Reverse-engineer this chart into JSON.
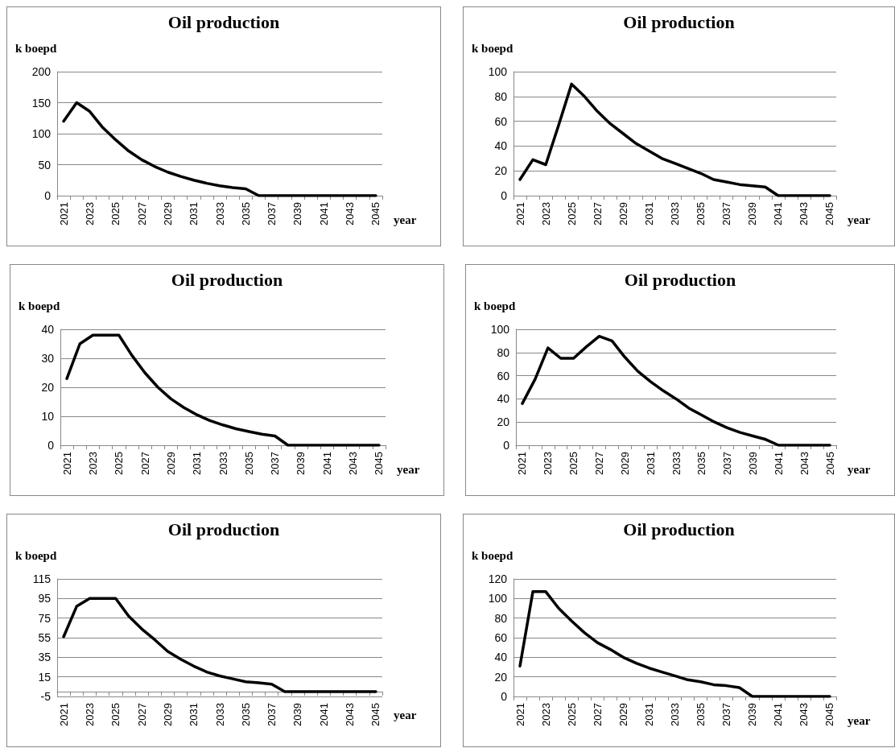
{
  "chart_data": [
    {
      "type": "line",
      "title": "Oil production",
      "ylabel": "k boepd",
      "xlabel": "year",
      "categories": [
        "2021",
        null,
        "2023",
        null,
        "2025",
        null,
        "2027",
        null,
        "2029",
        null,
        "2031",
        null,
        "2033",
        null,
        "2035",
        null,
        "2037",
        null,
        "2039",
        null,
        "2041",
        null,
        "2043",
        null,
        "2045"
      ],
      "series": [
        {
          "color": "#000000",
          "values": [
            120,
            150,
            136,
            110,
            90,
            72,
            58,
            47,
            38,
            31,
            25,
            20,
            16,
            13,
            11,
            0,
            0,
            0,
            0,
            0,
            0,
            0,
            0,
            0,
            0
          ]
        }
      ],
      "ylim": [
        0,
        200
      ],
      "yticks": [
        0,
        50,
        100,
        150,
        200
      ],
      "grid": "y",
      "marker": "none",
      "line_style": "solid"
    },
    {
      "type": "line",
      "title": "Oil production",
      "ylabel": "k boepd",
      "xlabel": "year",
      "categories": [
        "2021",
        null,
        "2023",
        null,
        "2025",
        null,
        "2027",
        null,
        "2029",
        null,
        "2031",
        null,
        "2033",
        null,
        "2035",
        null,
        "2037",
        null,
        "2039",
        null,
        "2041",
        null,
        "2043",
        null,
        "2045"
      ],
      "series": [
        {
          "color": "#000000",
          "values": [
            13,
            29,
            25,
            57,
            90,
            80,
            68,
            58,
            50,
            42,
            36,
            30,
            26,
            22,
            18,
            13,
            11,
            9,
            8,
            7,
            0,
            0,
            0,
            0,
            0
          ]
        }
      ],
      "ylim": [
        0,
        100
      ],
      "yticks": [
        0,
        20,
        40,
        60,
        80,
        100
      ],
      "grid": "y",
      "marker": "none",
      "line_style": "solid"
    },
    {
      "type": "line",
      "title": "Oil production",
      "ylabel": "k boepd",
      "xlabel": "year",
      "categories": [
        "2021",
        null,
        "2023",
        null,
        "2025",
        null,
        "2027",
        null,
        "2029",
        null,
        "2031",
        null,
        "2033",
        null,
        "2035",
        null,
        "2037",
        null,
        "2039",
        null,
        "2041",
        null,
        "2043",
        null,
        "2045"
      ],
      "series": [
        {
          "color": "#000000",
          "values": [
            23,
            35,
            38,
            38,
            38,
            31,
            25,
            20,
            16,
            13,
            10.5,
            8.5,
            7,
            5.7,
            4.7,
            3.8,
            3.2,
            0,
            0,
            0,
            0,
            0,
            0,
            0,
            0
          ]
        }
      ],
      "ylim": [
        0,
        40
      ],
      "yticks": [
        0,
        10,
        20,
        30,
        40
      ],
      "grid": "y",
      "marker": "none",
      "line_style": "solid"
    },
    {
      "type": "line",
      "title": "Oil production",
      "ylabel": "k boepd",
      "xlabel": "year",
      "categories": [
        "2021",
        null,
        "2023",
        null,
        "2025",
        null,
        "2027",
        null,
        "2029",
        null,
        "2031",
        null,
        "2033",
        null,
        "2035",
        null,
        "2037",
        null,
        "2039",
        null,
        "2041",
        null,
        "2043",
        null,
        "2045"
      ],
      "series": [
        {
          "color": "#000000",
          "values": [
            36,
            57,
            84,
            75,
            75,
            85,
            94,
            90,
            76,
            64,
            55,
            47,
            40,
            32,
            26,
            20,
            15,
            11,
            8,
            5,
            0,
            0,
            0,
            0,
            0
          ]
        }
      ],
      "ylim": [
        0,
        100
      ],
      "yticks": [
        0,
        20,
        40,
        60,
        80,
        100
      ],
      "grid": "y",
      "marker": "none",
      "line_style": "solid"
    },
    {
      "type": "line",
      "title": "Oil production",
      "ylabel": "k boepd",
      "xlabel": "year",
      "categories": [
        "2021",
        null,
        "2023",
        null,
        "2025",
        null,
        "2027",
        null,
        "2029",
        null,
        "2031",
        null,
        "2033",
        null,
        "2035",
        null,
        "2037",
        null,
        "2039",
        null,
        "2041",
        null,
        "2043",
        null,
        "2045"
      ],
      "series": [
        {
          "color": "#000000",
          "values": [
            56,
            87,
            95,
            95,
            95,
            77,
            64,
            53,
            41,
            33,
            26,
            20,
            16,
            13,
            10,
            9,
            7.5,
            0,
            0,
            0,
            0,
            0,
            0,
            0,
            0
          ]
        }
      ],
      "ylim": [
        -5,
        115
      ],
      "yticks": [
        -5,
        15,
        35,
        55,
        75,
        95,
        115
      ],
      "grid": "y",
      "marker": "none",
      "line_style": "solid"
    },
    {
      "type": "line",
      "title": "Oil production",
      "ylabel": "k boepd",
      "xlabel": "year",
      "categories": [
        "2021",
        null,
        "2023",
        null,
        "2025",
        null,
        "2027",
        null,
        "2029",
        null,
        "2031",
        null,
        "2033",
        null,
        "2035",
        null,
        "2037",
        null,
        "2039",
        null,
        "2041",
        null,
        "2043",
        null,
        "2045"
      ],
      "series": [
        {
          "color": "#000000",
          "values": [
            31,
            107,
            107,
            90,
            77,
            65,
            55,
            48,
            40,
            34,
            29,
            25,
            21,
            17,
            15,
            12,
            11,
            9,
            0,
            0,
            0,
            0,
            0,
            0,
            0
          ]
        }
      ],
      "ylim": [
        0,
        120
      ],
      "yticks": [
        0,
        20,
        40,
        60,
        80,
        100,
        120
      ],
      "grid": "y",
      "marker": "none",
      "line_style": "solid"
    }
  ]
}
